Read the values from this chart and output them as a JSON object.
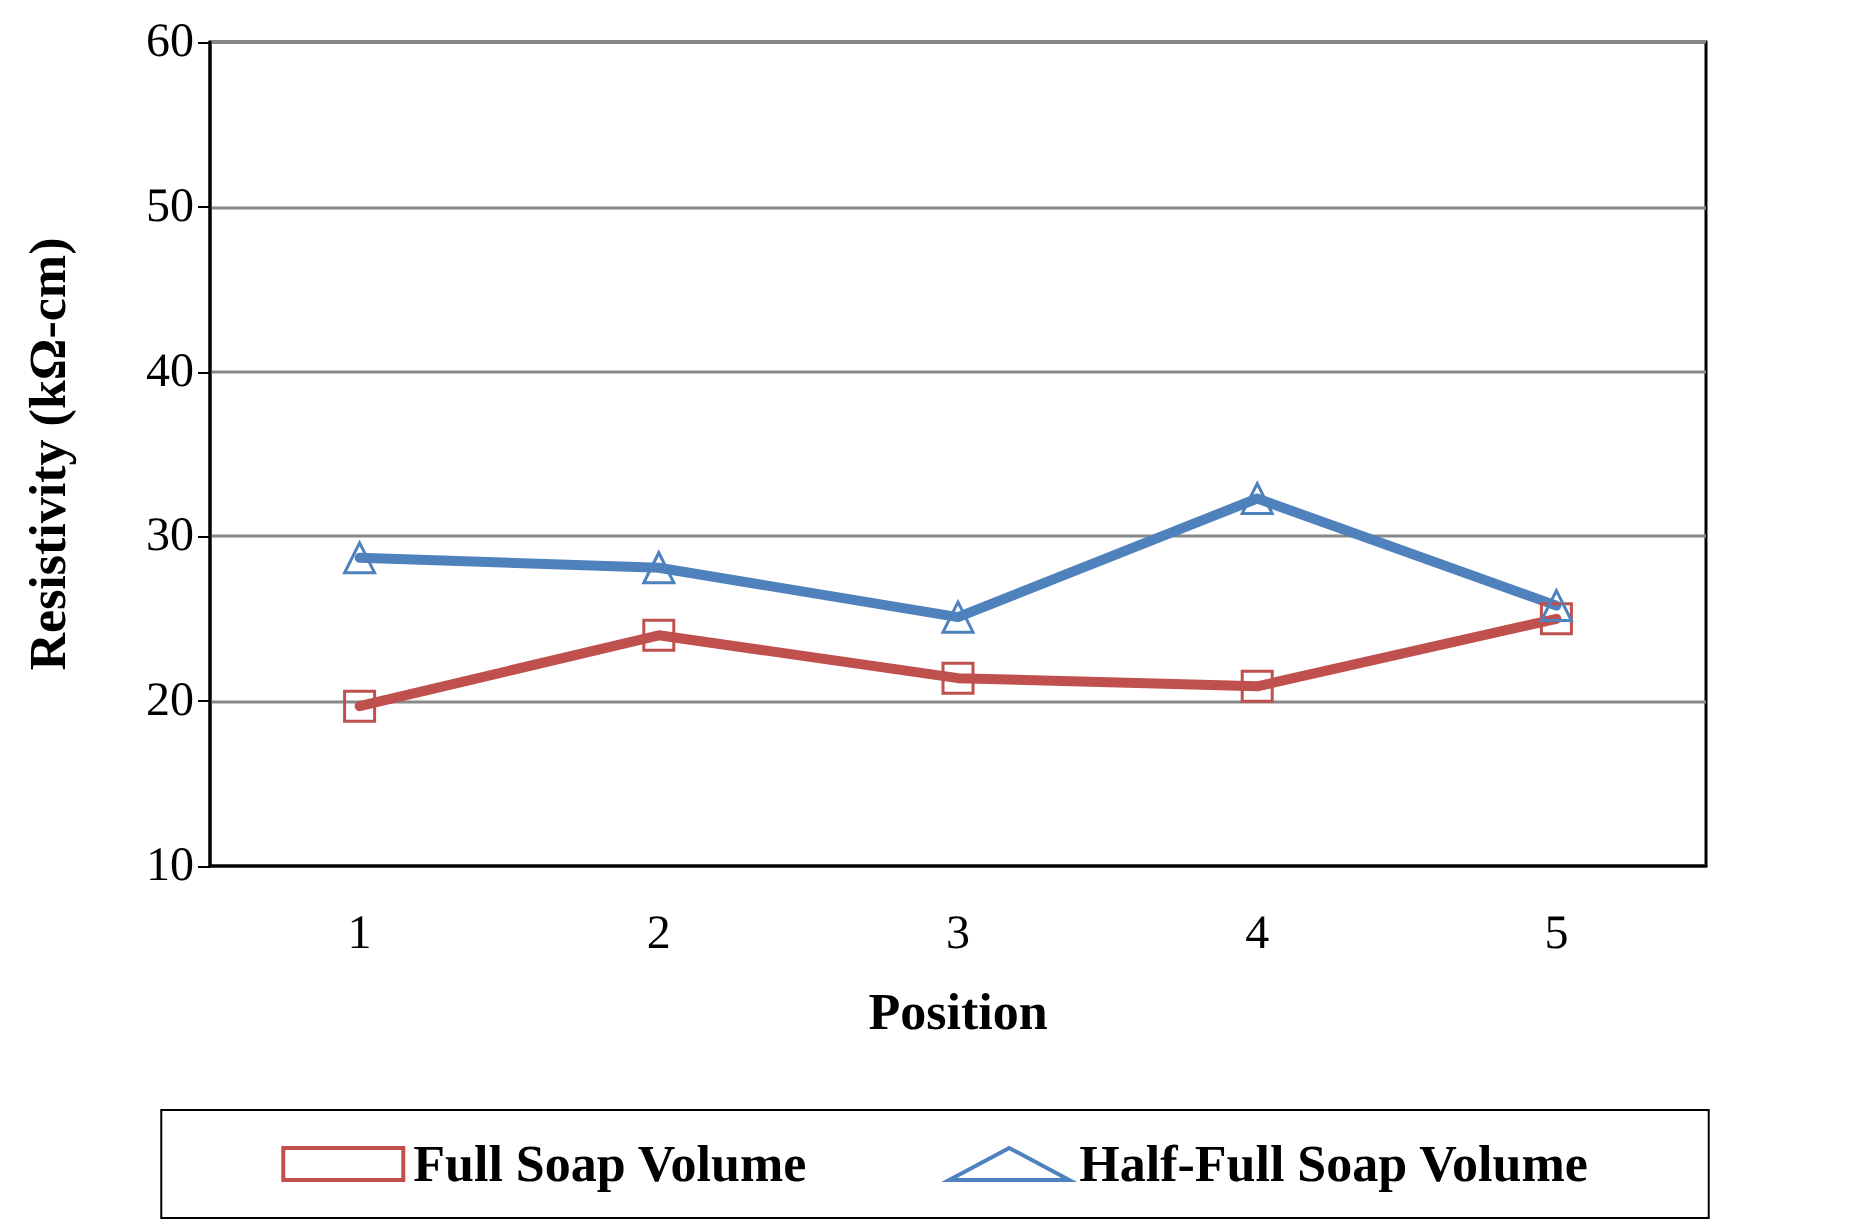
{
  "chart_data": {
    "type": "line",
    "xlabel": "Position",
    "ylabel": "Resistivity (kΩ-cm)",
    "categories": [
      "1",
      "2",
      "3",
      "4",
      "5"
    ],
    "series": [
      {
        "name": "Full Soap Volume",
        "color": "#c0504d",
        "marker": "square",
        "values": [
          19.7,
          24.0,
          21.4,
          20.9,
          25.0
        ]
      },
      {
        "name": "Half-Full Soap Volume",
        "color": "#4f81bd",
        "marker": "triangle",
        "values": [
          28.7,
          28.1,
          25.1,
          32.3,
          25.8
        ]
      }
    ],
    "ylim": [
      10,
      60
    ],
    "yticks": [
      10,
      20,
      30,
      40,
      50,
      60
    ],
    "grid": "y",
    "legend": "bottom",
    "line_style": "solid"
  }
}
